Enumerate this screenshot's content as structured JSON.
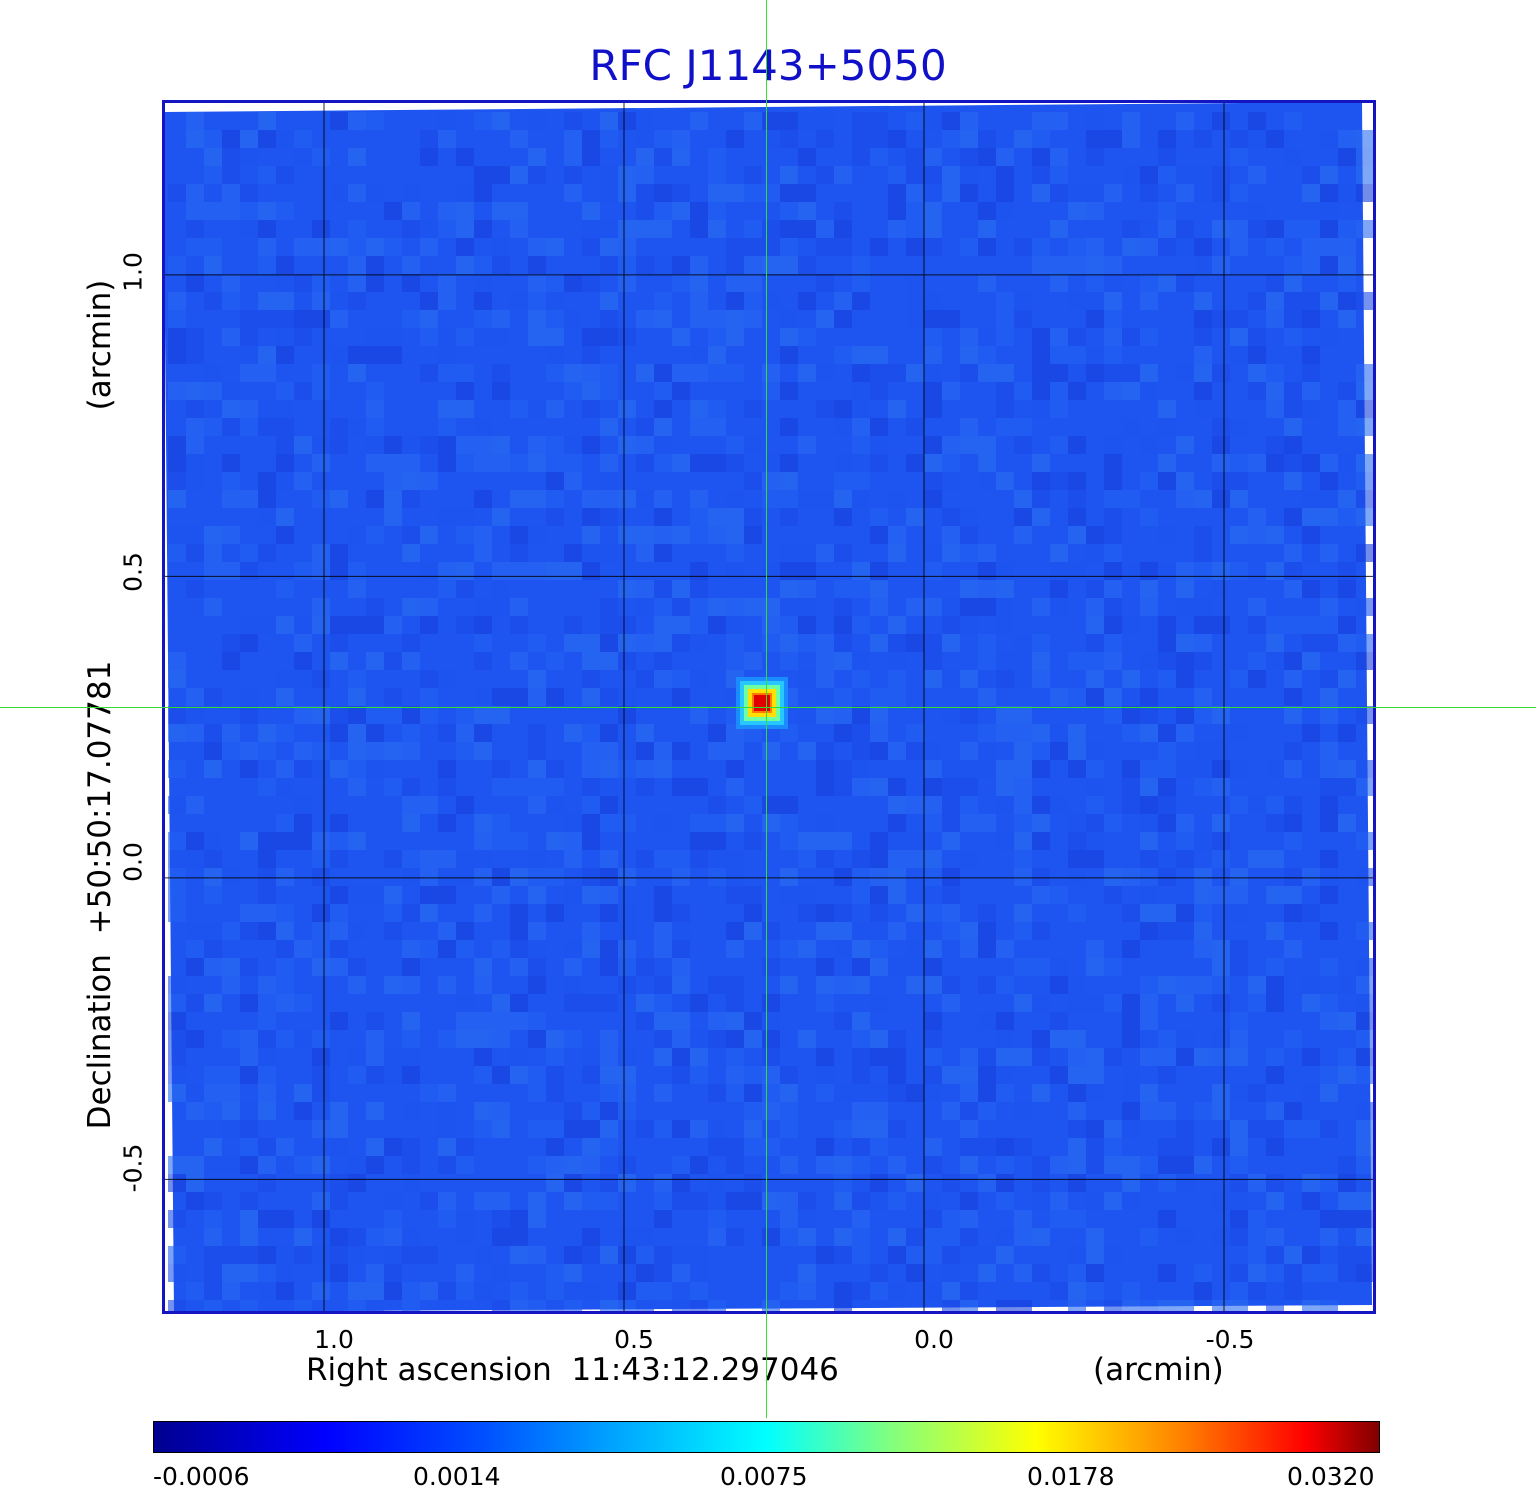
{
  "title": "RFC J1143+5050",
  "colors": {
    "title": "#1010c8",
    "frame": "#1414c0",
    "background_map": "#1e55f0",
    "crosshair": "#33dd33",
    "grid": "#000000"
  },
  "axes": {
    "x": {
      "label": "Right ascension  11:43:12.297046",
      "unit": "(arcmin)",
      "ticks": [
        "1.0",
        "0.5",
        "0.0",
        "-0.5"
      ],
      "range": [
        1.27,
        -0.75
      ]
    },
    "y": {
      "label": "Declination  +50:50:17.07781",
      "unit": "(arcmin)",
      "ticks": [
        "1.0",
        "0.5",
        "0.0",
        "-0.5"
      ],
      "range": [
        -0.72,
        1.29
      ]
    },
    "grid": true
  },
  "source": {
    "x_arcmin": 0.27,
    "y_arcmin": 0.29
  },
  "colorbar": {
    "colormap": "jet",
    "ticks": [
      "-0.0006",
      "0.0014",
      "0.0075",
      "0.0178",
      "0.0320"
    ]
  }
}
